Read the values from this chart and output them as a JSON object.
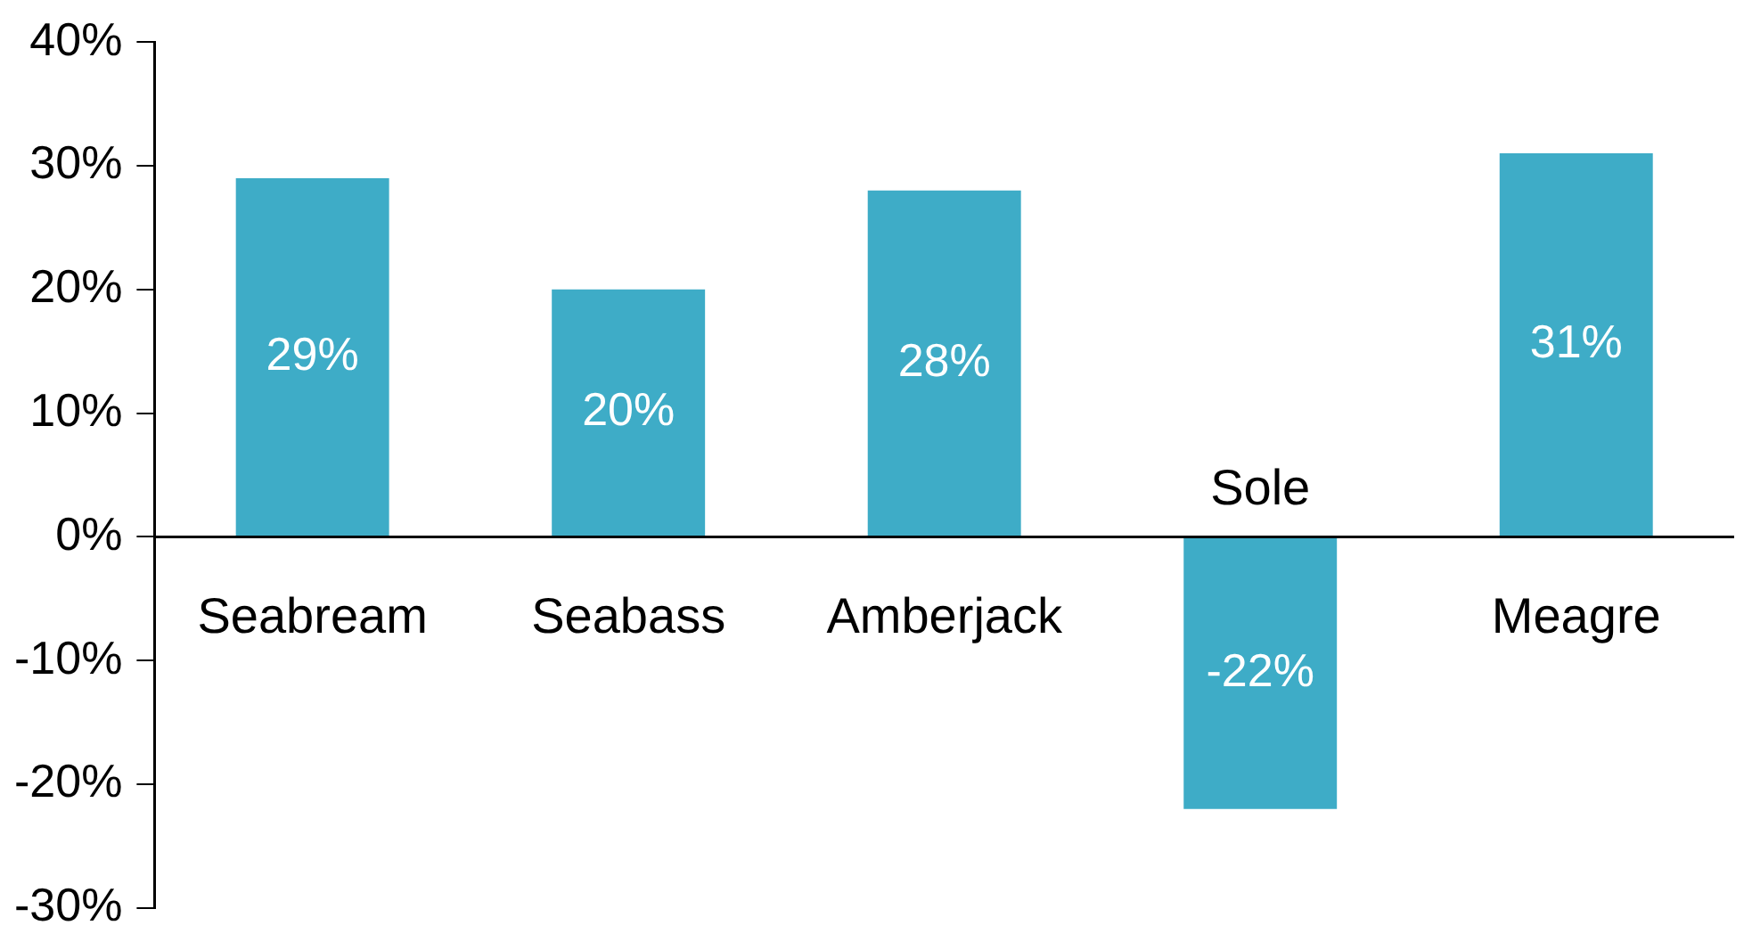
{
  "chart_data": {
    "type": "bar",
    "categories": [
      "Seabream",
      "Seabass",
      "Amberjack",
      "Sole",
      "Meagre"
    ],
    "values": [
      29,
      20,
      28,
      -22,
      31
    ],
    "value_labels": [
      "29%",
      "20%",
      "28%",
      "-22%",
      "31%"
    ],
    "color": "#3eacc7",
    "ylim": [
      -30,
      40
    ],
    "yticks": [
      {
        "value": -30,
        "label": "-30%"
      },
      {
        "value": -20,
        "label": "-20%"
      },
      {
        "value": -10,
        "label": "-10%"
      },
      {
        "value": 0,
        "label": "0%"
      },
      {
        "value": 10,
        "label": "10%"
      },
      {
        "value": 20,
        "label": "20%"
      },
      {
        "value": 30,
        "label": "30%"
      },
      {
        "value": 40,
        "label": "40%"
      }
    ],
    "grid": false,
    "legend": false
  }
}
